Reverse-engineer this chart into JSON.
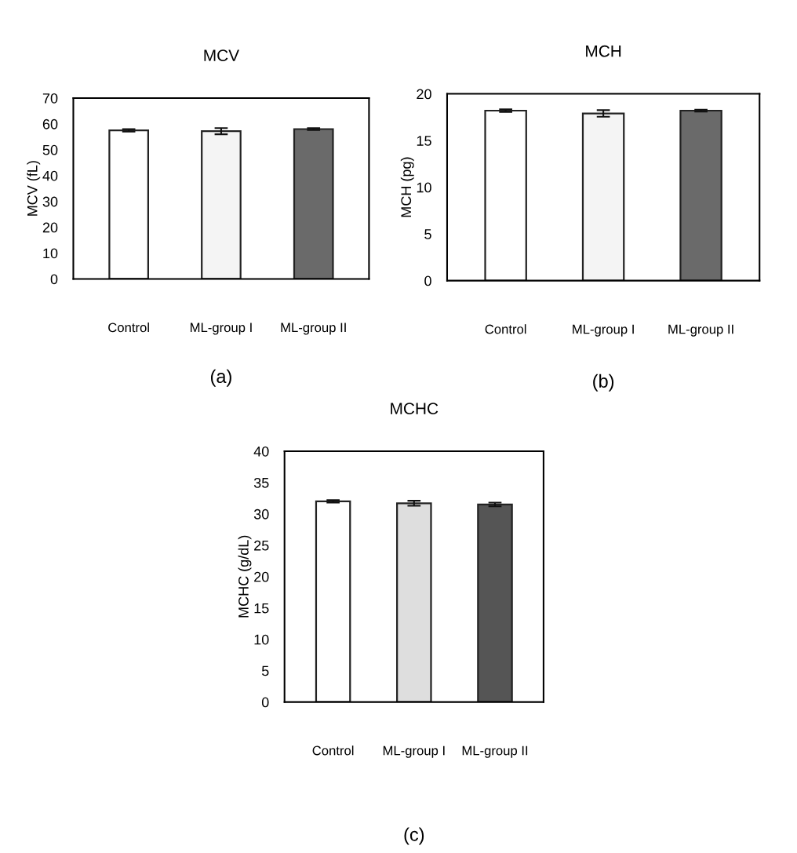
{
  "chart_data": [
    {
      "type": "bar",
      "title": "MCV",
      "ylabel": "MCV (fL)",
      "categories": [
        "Control",
        "ML-group I",
        "ML-group II"
      ],
      "values": [
        57.5,
        57.2,
        58.0
      ],
      "errors": [
        0.5,
        1.2,
        0.4
      ],
      "colors": [
        "#ffffff",
        "#f4f4f4",
        "#6a6a6a"
      ],
      "ylim": [
        0,
        70
      ],
      "yticks": [
        0,
        10,
        20,
        30,
        40,
        50,
        60,
        70
      ],
      "grid": false,
      "legend": false,
      "annotations": [
        "(a)"
      ]
    },
    {
      "type": "bar",
      "title": "MCH",
      "ylabel": "MCH (pg)",
      "categories": [
        "Control",
        "ML-group I",
        "ML-group II"
      ],
      "values": [
        18.2,
        17.9,
        18.2
      ],
      "errors": [
        0.15,
        0.35,
        0.1
      ],
      "colors": [
        "#ffffff",
        "#f4f4f4",
        "#6a6a6a"
      ],
      "ylim": [
        0,
        20
      ],
      "yticks": [
        0,
        5,
        10,
        15,
        20
      ],
      "grid": false,
      "legend": false,
      "annotations": [
        "(b)"
      ]
    },
    {
      "type": "bar",
      "title": "MCHC",
      "ylabel": "MCHC (g/dL)",
      "categories": [
        "Control",
        "ML-group I",
        "ML-group II"
      ],
      "values": [
        32.0,
        31.7,
        31.5
      ],
      "errors": [
        0.2,
        0.4,
        0.3
      ],
      "colors": [
        "#ffffff",
        "#dedede",
        "#555555"
      ],
      "ylim": [
        0,
        40
      ],
      "yticks": [
        0,
        5,
        10,
        15,
        20,
        25,
        30,
        35,
        40
      ],
      "grid": false,
      "legend": false,
      "annotations": [
        "(c)"
      ]
    }
  ]
}
